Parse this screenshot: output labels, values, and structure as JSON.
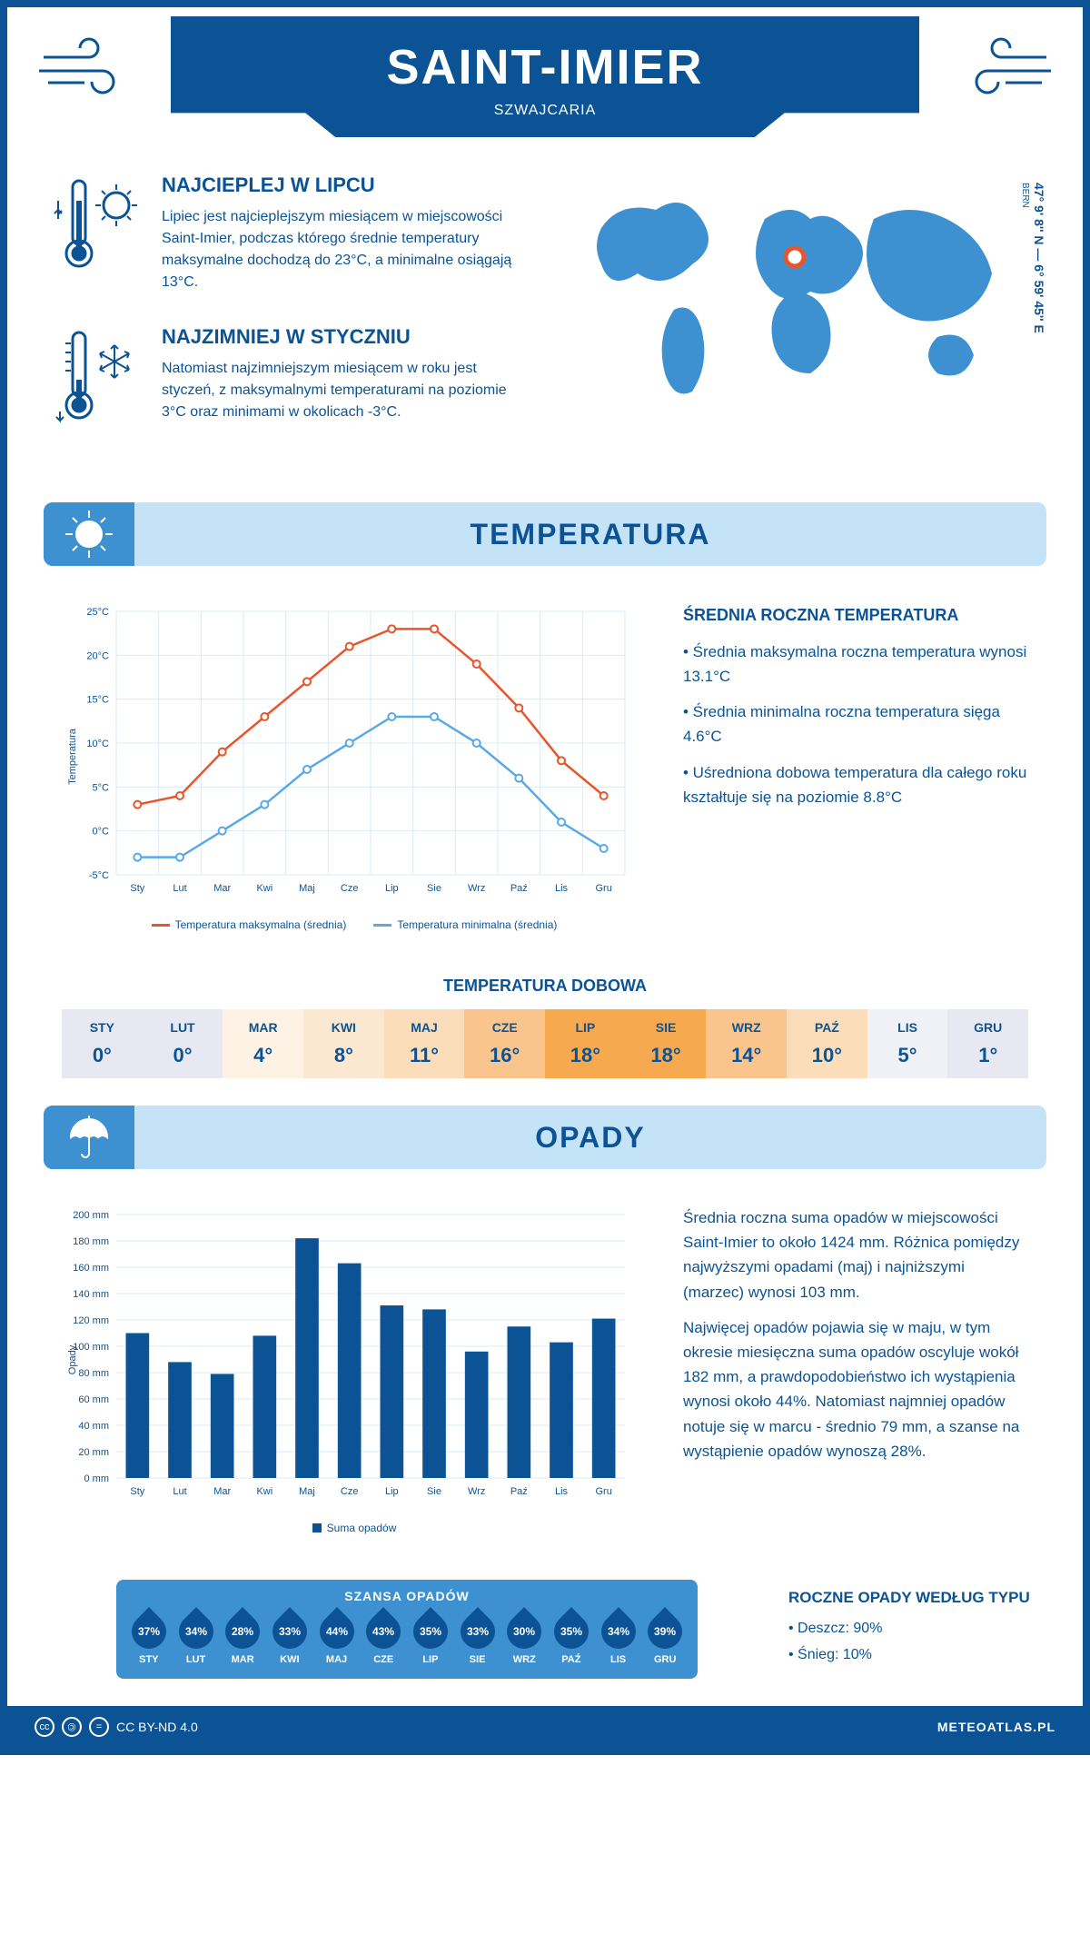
{
  "header": {
    "title": "SAINT-IMIER",
    "subtitle": "SZWAJCARIA"
  },
  "coords": {
    "text": "47° 9' 8'' N — 6° 59' 45'' E",
    "city": "BERN"
  },
  "intro": {
    "hot": {
      "title": "NAJCIEPLEJ W LIPCU",
      "text": "Lipiec jest najcieplejszym miesiącem w miejscowości Saint-Imier, podczas którego średnie temperatury maksymalne dochodzą do 23°C, a minimalne osiągają 13°C."
    },
    "cold": {
      "title": "NAJZIMNIEJ W STYCZNIU",
      "text": "Natomiast najzimniejszym miesiącem w roku jest styczeń, z maksymalnymi temperaturami na poziomie 3°C oraz minimami w okolicach -3°C."
    }
  },
  "sections": {
    "temperature": "TEMPERATURA",
    "precipitation": "OPADY"
  },
  "months": [
    "Sty",
    "Lut",
    "Mar",
    "Kwi",
    "Maj",
    "Cze",
    "Lip",
    "Sie",
    "Wrz",
    "Paź",
    "Lis",
    "Gru"
  ],
  "months_upper": [
    "STY",
    "LUT",
    "MAR",
    "KWI",
    "MAJ",
    "CZE",
    "LIP",
    "SIE",
    "WRZ",
    "PAŹ",
    "LIS",
    "GRU"
  ],
  "temp_chart": {
    "type": "line",
    "ylabel": "Temperatura",
    "ylim": [
      -5,
      25
    ],
    "ytick_step": 5,
    "ytick_labels": [
      "-5°C",
      "0°C",
      "5°C",
      "10°C",
      "15°C",
      "20°C",
      "25°C"
    ],
    "grid_color": "#dbe9f5",
    "background_color": "#ffffff",
    "series": [
      {
        "name": "Temperatura maksymalna (średnia)",
        "color": "#e8552d",
        "values": [
          3,
          4,
          9,
          13,
          17,
          21,
          23,
          23,
          19,
          14,
          8,
          4
        ]
      },
      {
        "name": "Temperatura minimalna (średnia)",
        "color": "#5aa9e6",
        "values": [
          -3,
          -3,
          0,
          3,
          7,
          10,
          13,
          13,
          10,
          6,
          1,
          -2
        ]
      }
    ],
    "legend_max": "Temperatura maksymalna (średnia)",
    "legend_min": "Temperatura minimalna (średnia)"
  },
  "temp_side": {
    "title": "ŚREDNIA ROCZNA TEMPERATURA",
    "p1": "• Średnia maksymalna roczna temperatura wynosi 13.1°C",
    "p2": "• Średnia minimalna roczna temperatura sięga 4.6°C",
    "p3": "• Uśredniona dobowa temperatura dla całego roku kształtuje się na poziomie 8.8°C"
  },
  "daily": {
    "title": "TEMPERATURA DOBOWA",
    "values": [
      "0°",
      "0°",
      "4°",
      "8°",
      "11°",
      "16°",
      "18°",
      "18°",
      "14°",
      "10°",
      "5°",
      "1°"
    ],
    "colors": [
      "#e8e8f3",
      "#e8e8f3",
      "#fdf2e3",
      "#fce8d0",
      "#fbddb9",
      "#f9c58c",
      "#f7a94f",
      "#f7a94f",
      "#f9c58c",
      "#fbddb9",
      "#f0f0f7",
      "#e8e8f3"
    ]
  },
  "precip_chart": {
    "type": "bar",
    "ylabel": "Opady",
    "ylim": [
      0,
      200
    ],
    "ytick_step": 20,
    "ytick_labels": [
      "0 mm",
      "20 mm",
      "40 mm",
      "60 mm",
      "80 mm",
      "100 mm",
      "120 mm",
      "140 mm",
      "160 mm",
      "180 mm",
      "200 mm"
    ],
    "bar_color": "#0b5394",
    "grid_color": "#dbe9f5",
    "values": [
      110,
      88,
      79,
      108,
      182,
      163,
      131,
      128,
      96,
      115,
      103,
      121
    ],
    "legend": "Suma opadów"
  },
  "precip_side": {
    "p1": "Średnia roczna suma opadów w miejscowości Saint-Imier to około 1424 mm. Różnica pomiędzy najwyższymi opadami (maj) i najniższymi (marzec) wynosi 103 mm.",
    "p2": "Najwięcej opadów pojawia się w maju, w tym okresie miesięczna suma opadów oscyluje wokół 182 mm, a prawdopodobieństwo ich wystąpienia wynosi około 44%. Natomiast najmniej opadów notuje się w marcu - średnio 79 mm, a szanse na wystąpienie opadów wynoszą 28%."
  },
  "chance": {
    "title": "SZANSA OPADÓW",
    "values": [
      "37%",
      "34%",
      "28%",
      "33%",
      "44%",
      "43%",
      "35%",
      "33%",
      "30%",
      "35%",
      "34%",
      "39%"
    ]
  },
  "precip_type": {
    "title": "ROCZNE OPADY WEDŁUG TYPU",
    "rain": "• Deszcz: 90%",
    "snow": "• Śnieg: 10%"
  },
  "footer": {
    "license": "CC BY-ND 4.0",
    "site": "METEOATLAS.PL"
  },
  "colors": {
    "primary": "#0b5394",
    "light": "#c5e3f6",
    "mid": "#3d91d0",
    "orange": "#e8552d",
    "blue_line": "#5aa9e6"
  }
}
